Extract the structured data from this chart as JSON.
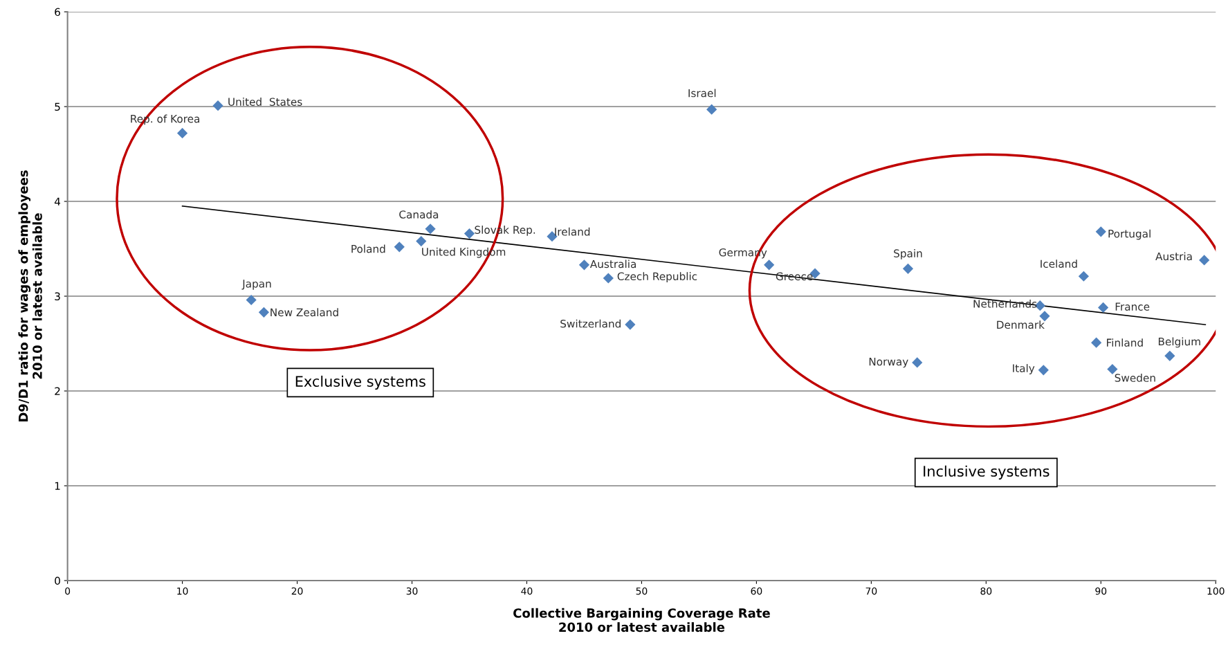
{
  "chart_data": {
    "type": "scatter",
    "xlabel": "Collective Bargaining Coverage Rate\n2010 or latest available",
    "ylabel": "D9/D1 ratio for wages of employees\n2010 or latest available",
    "xlim": [
      0,
      100
    ],
    "xticks": [
      0,
      10,
      20,
      30,
      40,
      50,
      60,
      70,
      80,
      90,
      100
    ],
    "ylim": [
      0,
      6
    ],
    "yticks": [
      0,
      1,
      2,
      3,
      4,
      5,
      6
    ],
    "grid": "y",
    "legend": false,
    "marker": "diamond",
    "series": [
      {
        "color": "#4f81bd",
        "x": [
          10,
          13.1,
          56.1,
          31.6,
          35.0,
          42.2,
          28.9,
          30.8,
          45.0,
          47.1,
          16.0,
          17.1,
          49.0,
          61.1,
          65.1,
          73.2,
          90.0,
          88.5,
          99.0,
          84.7,
          85.1,
          90.2,
          89.6,
          96.0,
          74.0,
          85.0,
          91.0
        ],
        "values": [
          4.72,
          5.01,
          4.97,
          3.71,
          3.66,
          3.63,
          3.52,
          3.58,
          3.33,
          3.19,
          2.96,
          2.83,
          2.7,
          3.33,
          3.24,
          3.29,
          3.68,
          3.21,
          3.38,
          2.9,
          2.79,
          2.88,
          2.51,
          2.37,
          2.3,
          2.22,
          2.23
        ]
      },
      {
        "type": "line",
        "color": "#000000",
        "marker": "none",
        "line_style": "solid",
        "x": [
          10,
          99.1
        ],
        "values": [
          3.95,
          2.7
        ]
      }
    ],
    "annotations": [
      {
        "text": "Rep. of Korea",
        "x": 10,
        "y": 4.72
      },
      {
        "text": "United  States",
        "x": 13.1,
        "y": 5.01
      },
      {
        "text": "Israel",
        "x": 56.1,
        "y": 4.97
      },
      {
        "text": "Canada",
        "x": 31.6,
        "y": 3.71
      },
      {
        "text": "Slovak Rep.",
        "x": 35.0,
        "y": 3.66
      },
      {
        "text": "Ireland",
        "x": 42.2,
        "y": 3.63
      },
      {
        "text": "Poland",
        "x": 28.9,
        "y": 3.52
      },
      {
        "text": "United Kingdom",
        "x": 30.8,
        "y": 3.58
      },
      {
        "text": "Australia",
        "x": 45.0,
        "y": 3.33
      },
      {
        "text": "Czech Republic",
        "x": 47.1,
        "y": 3.19
      },
      {
        "text": "Japan",
        "x": 16.0,
        "y": 2.96
      },
      {
        "text": "New Zealand",
        "x": 17.1,
        "y": 2.83
      },
      {
        "text": "Switzerland",
        "x": 49.0,
        "y": 2.7
      },
      {
        "text": "Germany",
        "x": 61.1,
        "y": 3.33
      },
      {
        "text": "Greece",
        "x": 65.1,
        "y": 3.24
      },
      {
        "text": "Spain",
        "x": 73.2,
        "y": 3.29
      },
      {
        "text": "Portugal",
        "x": 90.0,
        "y": 3.68
      },
      {
        "text": "Iceland",
        "x": 88.5,
        "y": 3.21
      },
      {
        "text": "Austria",
        "x": 99.0,
        "y": 3.38
      },
      {
        "text": "Netherlands",
        "x": 84.7,
        "y": 2.9
      },
      {
        "text": "Denmark",
        "x": 85.1,
        "y": 2.79
      },
      {
        "text": "France",
        "x": 90.2,
        "y": 2.88
      },
      {
        "text": "Finland",
        "x": 89.6,
        "y": 2.51
      },
      {
        "text": "Belgium",
        "x": 96.0,
        "y": 2.37
      },
      {
        "text": "Norway",
        "x": 74.0,
        "y": 2.3
      },
      {
        "text": "Italy",
        "x": 85.0,
        "y": 2.22
      },
      {
        "text": "Sweden",
        "x": 91.0,
        "y": 2.23
      },
      "Exclusive systems",
      "Inclusive systems"
    ]
  }
}
